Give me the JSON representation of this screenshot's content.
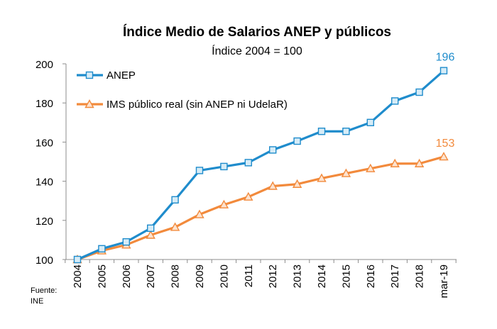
{
  "chart_data": {
    "type": "line",
    "title": "Índice Medio de Salarios ANEP y públicos",
    "subtitle": "Índice 2004 = 100",
    "xlabel": "",
    "ylabel": "",
    "categories": [
      "2004",
      "2005",
      "2006",
      "2007",
      "2008",
      "2009",
      "2010",
      "2011",
      "2012",
      "2013",
      "2014",
      "2015",
      "2016",
      "2017",
      "2018",
      "mar-19"
    ],
    "ylim": [
      100,
      200
    ],
    "yticks": [
      100,
      120,
      140,
      160,
      180,
      200
    ],
    "grid": false,
    "legend_position": "top-left",
    "series": [
      {
        "name": "ANEP",
        "color": "#1f8ccc",
        "marker": "square",
        "values": [
          100,
          105.5,
          109,
          116,
          130.5,
          145.5,
          147.5,
          149.5,
          156,
          160.5,
          165.5,
          165.5,
          170,
          181,
          185.5,
          196.5
        ],
        "end_label": "196"
      },
      {
        "name": "IMS público real (sin ANEP ni UdelaR)",
        "color": "#f28a3c",
        "marker": "triangle",
        "values": [
          100,
          104.5,
          107.5,
          112.5,
          116.5,
          123,
          128,
          132,
          137.5,
          138.5,
          141.5,
          144,
          146.5,
          149,
          149,
          152.5
        ],
        "end_label": "153"
      }
    ]
  },
  "footer": {
    "source_label": "Fuente:",
    "source_value": "INE"
  }
}
